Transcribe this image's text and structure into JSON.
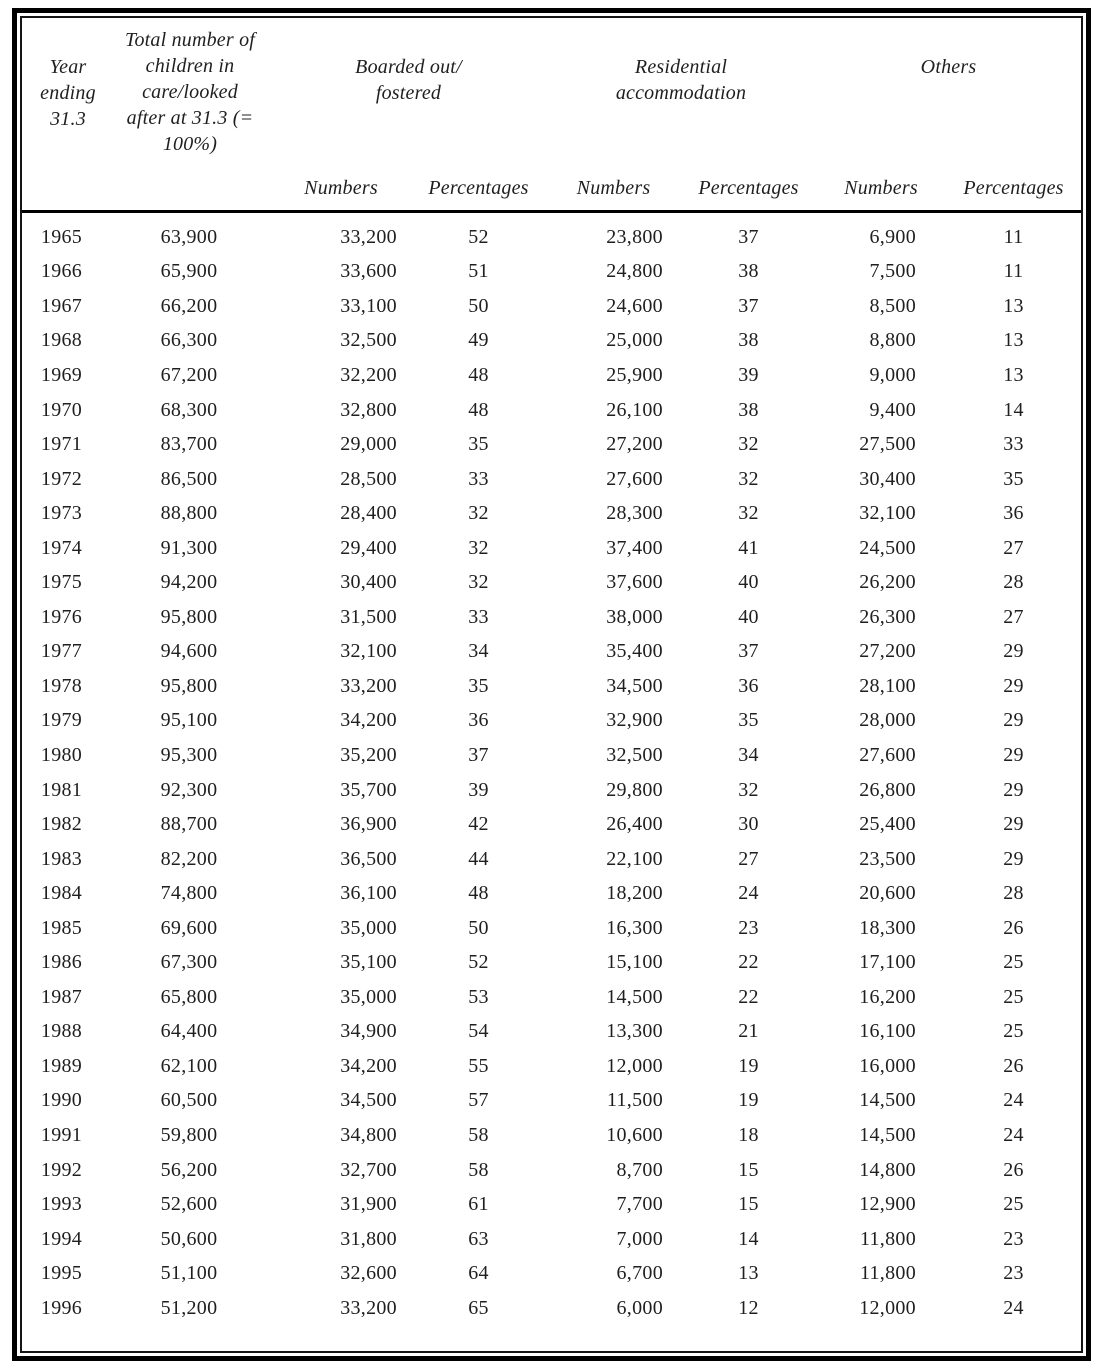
{
  "page": {
    "background": "#ffffff",
    "frame_border_color": "#000000",
    "text_color": "#1f1f1f"
  },
  "table": {
    "header": {
      "year": "Year\nending\n31.3",
      "total": "Total number of\nchildren in\ncare/looked\nafter at 31.3  (=\n100%)",
      "boarded": "Boarded out/\nfostered",
      "residential": "Residential\naccommodation",
      "others": "Others",
      "numbers": "Numbers",
      "percentages": "Percentages"
    },
    "columns": [
      "year",
      "total_in_care",
      "boarded_numbers",
      "boarded_percentages",
      "residential_numbers",
      "residential_percentages",
      "others_numbers",
      "others_percentages"
    ],
    "rows": [
      [
        "1965",
        "63,900",
        "33,200",
        "52",
        "23,800",
        "37",
        "6,900",
        "11"
      ],
      [
        "1966",
        "65,900",
        "33,600",
        "51",
        "24,800",
        "38",
        "7,500",
        "11"
      ],
      [
        "1967",
        "66,200",
        "33,100",
        "50",
        "24,600",
        "37",
        "8,500",
        "13"
      ],
      [
        "1968",
        "66,300",
        "32,500",
        "49",
        "25,000",
        "38",
        "8,800",
        "13"
      ],
      [
        "1969",
        "67,200",
        "32,200",
        "48",
        "25,900",
        "39",
        "9,000",
        "13"
      ],
      [
        "1970",
        "68,300",
        "32,800",
        "48",
        "26,100",
        "38",
        "9,400",
        "14"
      ],
      [
        "1971",
        "83,700",
        "29,000",
        "35",
        "27,200",
        "32",
        "27,500",
        "33"
      ],
      [
        "1972",
        "86,500",
        "28,500",
        "33",
        "27,600",
        "32",
        "30,400",
        "35"
      ],
      [
        "1973",
        "88,800",
        "28,400",
        "32",
        "28,300",
        "32",
        "32,100",
        "36"
      ],
      [
        "1974",
        "91,300",
        "29,400",
        "32",
        "37,400",
        "41",
        "24,500",
        "27"
      ],
      [
        "1975",
        "94,200",
        "30,400",
        "32",
        "37,600",
        "40",
        "26,200",
        "28"
      ],
      [
        "1976",
        "95,800",
        "31,500",
        "33",
        "38,000",
        "40",
        "26,300",
        "27"
      ],
      [
        "1977",
        "94,600",
        "32,100",
        "34",
        "35,400",
        "37",
        "27,200",
        "29"
      ],
      [
        "1978",
        "95,800",
        "33,200",
        "35",
        "34,500",
        "36",
        "28,100",
        "29"
      ],
      [
        "1979",
        "95,100",
        "34,200",
        "36",
        "32,900",
        "35",
        "28,000",
        "29"
      ],
      [
        "1980",
        "95,300",
        "35,200",
        "37",
        "32,500",
        "34",
        "27,600",
        "29"
      ],
      [
        "1981",
        "92,300",
        "35,700",
        "39",
        "29,800",
        "32",
        "26,800",
        "29"
      ],
      [
        "1982",
        "88,700",
        "36,900",
        "42",
        "26,400",
        "30",
        "25,400",
        "29"
      ],
      [
        "1983",
        "82,200",
        "36,500",
        "44",
        "22,100",
        "27",
        "23,500",
        "29"
      ],
      [
        "1984",
        "74,800",
        "36,100",
        "48",
        "18,200",
        "24",
        "20,600",
        "28"
      ],
      [
        "1985",
        "69,600",
        "35,000",
        "50",
        "16,300",
        "23",
        "18,300",
        "26"
      ],
      [
        "1986",
        "67,300",
        "35,100",
        "52",
        "15,100",
        "22",
        "17,100",
        "25"
      ],
      [
        "1987",
        "65,800",
        "35,000",
        "53",
        "14,500",
        "22",
        "16,200",
        "25"
      ],
      [
        "1988",
        "64,400",
        "34,900",
        "54",
        "13,300",
        "21",
        "16,100",
        "25"
      ],
      [
        "1989",
        "62,100",
        "34,200",
        "55",
        "12,000",
        "19",
        "16,000",
        "26"
      ],
      [
        "1990",
        "60,500",
        "34,500",
        "57",
        "11,500",
        "19",
        "14,500",
        "24"
      ],
      [
        "1991",
        "59,800",
        "34,800",
        "58",
        "10,600",
        "18",
        "14,500",
        "24"
      ],
      [
        "1992",
        "56,200",
        "32,700",
        "58",
        "8,700",
        "15",
        "14,800",
        "26"
      ],
      [
        "1993",
        "52,600",
        "31,900",
        "61",
        "7,700",
        "15",
        "12,900",
        "25"
      ],
      [
        "1994",
        "50,600",
        "31,800",
        "63",
        "7,000",
        "14",
        "11,800",
        "23"
      ],
      [
        "1995",
        "51,100",
        "32,600",
        "64",
        "6,700",
        "13",
        "11,800",
        "23"
      ],
      [
        "1996",
        "51,200",
        "33,200",
        "65",
        "6,000",
        "12",
        "12,000",
        "24"
      ]
    ]
  }
}
